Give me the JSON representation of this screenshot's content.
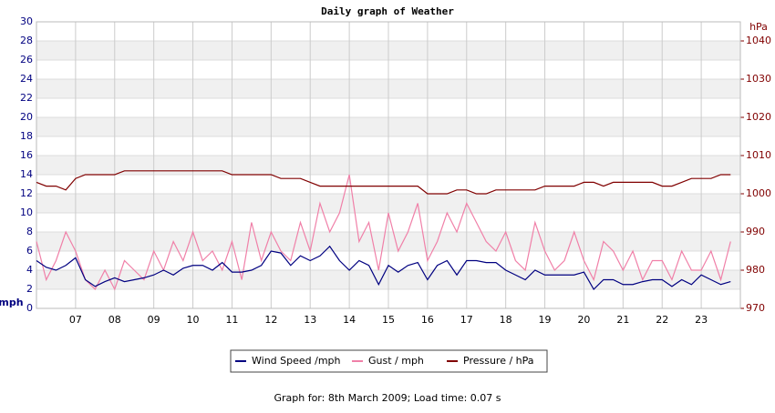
{
  "chart_data": {
    "type": "line",
    "title": "Daily graph of Weather",
    "y_label": "mph",
    "y2_label": "hPa",
    "x": [
      6,
      6.25,
      6.5,
      6.75,
      7,
      7.25,
      7.5,
      7.75,
      8,
      8.25,
      8.5,
      8.75,
      9,
      9.25,
      9.5,
      9.75,
      10,
      10.25,
      10.5,
      10.75,
      11,
      11.25,
      11.5,
      11.75,
      12,
      12.25,
      12.5,
      12.75,
      13,
      13.25,
      13.5,
      13.75,
      14,
      14.25,
      14.5,
      14.75,
      15,
      15.25,
      15.5,
      15.75,
      16,
      16.25,
      16.5,
      16.75,
      17,
      17.25,
      17.5,
      17.75,
      18,
      18.25,
      18.5,
      18.75,
      19,
      19.25,
      19.5,
      19.75,
      20,
      20.25,
      20.5,
      20.75,
      21,
      21.25,
      21.5,
      21.75,
      22,
      22.25,
      22.5,
      22.75,
      23,
      23.25,
      23.5,
      23.75
    ],
    "xlim": [
      6,
      24
    ],
    "xticks": [
      {
        "value": 7,
        "label": "07"
      },
      {
        "value": 8,
        "label": "08"
      },
      {
        "value": 9,
        "label": "09"
      },
      10,
      11,
      12,
      13,
      14,
      15,
      16,
      17,
      18,
      19,
      20,
      21,
      22,
      23
    ],
    "ylim": [
      0,
      30
    ],
    "yticks": [
      0,
      2,
      4,
      6,
      8,
      10,
      12,
      14,
      16,
      18,
      20,
      22,
      24,
      26,
      28,
      30
    ],
    "y2lim": [
      970,
      1045
    ],
    "y2ticks": [
      970,
      980,
      990,
      1000,
      1010,
      1020,
      1030,
      1040
    ],
    "grid": true,
    "series": [
      {
        "name": "Wind Speed /mph",
        "color": "#000080",
        "values": [
          5,
          4.3,
          4,
          4.5,
          5.3,
          3,
          2.3,
          2.8,
          3.2,
          2.8,
          3,
          3.2,
          3.5,
          4,
          3.5,
          4.2,
          4.5,
          4.5,
          4,
          4.8,
          3.8,
          3.8,
          4,
          4.5,
          6,
          5.8,
          4.5,
          5.5,
          5,
          5.5,
          6.5,
          5,
          4,
          5,
          4.5,
          2.5,
          4.5,
          3.8,
          4.5,
          4.8,
          3,
          4.5,
          5,
          3.5,
          5,
          5,
          4.8,
          4.8,
          4,
          3.5,
          3,
          4,
          3.5,
          3.5,
          3.5,
          3.5,
          3.8,
          2,
          3,
          3,
          2.5,
          2.5,
          2.8,
          3,
          3,
          2.3,
          3,
          2.5,
          3.5,
          3,
          2.5,
          2.8
        ]
      },
      {
        "name": "Gust / mph",
        "color": "#f080a8",
        "values": [
          7,
          3,
          5,
          8,
          6,
          3,
          2,
          4,
          2,
          5,
          4,
          3,
          6,
          4,
          7,
          5,
          8,
          5,
          6,
          4,
          7,
          3,
          9,
          5,
          8,
          6,
          5,
          9,
          6,
          11,
          8,
          10,
          14,
          7,
          9,
          4,
          10,
          6,
          8,
          11,
          5,
          7,
          10,
          8,
          11,
          9,
          7,
          6,
          8,
          5,
          4,
          9,
          6,
          4,
          5,
          8,
          5,
          3,
          7,
          6,
          4,
          6,
          3,
          5,
          5,
          3,
          6,
          4,
          4,
          6,
          3,
          7
        ]
      },
      {
        "name": "Pressure / hPa",
        "color": "#800000",
        "axis": "y2",
        "values": [
          1003,
          1002,
          1002,
          1001,
          1004,
          1005,
          1005,
          1005,
          1005,
          1006,
          1006,
          1006,
          1006,
          1006,
          1006,
          1006,
          1006,
          1006,
          1006,
          1006,
          1005,
          1005,
          1005,
          1005,
          1005,
          1004,
          1004,
          1004,
          1003,
          1002,
          1002,
          1002,
          1002,
          1002,
          1002,
          1002,
          1002,
          1002,
          1002,
          1002,
          1000,
          1000,
          1000,
          1001,
          1001,
          1000,
          1000,
          1001,
          1001,
          1001,
          1001,
          1001,
          1002,
          1002,
          1002,
          1002,
          1003,
          1003,
          1002,
          1003,
          1003,
          1003,
          1003,
          1003,
          1002,
          1002,
          1003,
          1004,
          1004,
          1004,
          1005,
          1005
        ]
      }
    ]
  },
  "footer": "Graph for: 8th March 2009; Load time: 0.07 s"
}
